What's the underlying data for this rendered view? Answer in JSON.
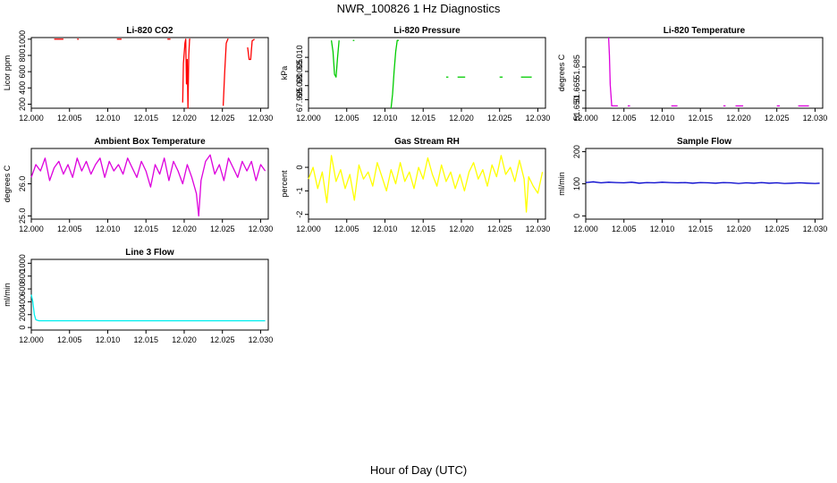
{
  "page": {
    "title": "NWR_100826  1 Hz Diagnostics",
    "xlabel": "Hour of Day (UTC)"
  },
  "chart_data": [
    {
      "type": "line",
      "title": "Li-820 CO2",
      "ylabel": "Licor ppm",
      "color": "#ff0000",
      "xlim": [
        12.0,
        12.031
      ],
      "ylim": [
        150,
        1020
      ],
      "xticks": [
        12.0,
        12.005,
        12.01,
        12.015,
        12.02,
        12.025,
        12.03
      ],
      "xtick_labels": [
        "12.000",
        "12.005",
        "12.010",
        "12.015",
        "12.020",
        "12.025",
        "12.030"
      ],
      "yticks": [
        200,
        400,
        600,
        800,
        1000
      ],
      "ytick_labels": [
        "200",
        "400",
        "600",
        "800",
        "1000"
      ],
      "series": [
        {
          "name": "seg1",
          "x": [
            12.003,
            12.0042
          ],
          "y": [
            1000,
            1000
          ]
        },
        {
          "name": "seg2",
          "x": [
            12.006,
            12.0062
          ],
          "y": [
            1000,
            1000
          ]
        },
        {
          "name": "seg3",
          "x": [
            12.0112,
            12.0118
          ],
          "y": [
            1000,
            1000
          ]
        },
        {
          "name": "seg4",
          "x": [
            12.0178,
            12.0182
          ],
          "y": [
            1000,
            1000
          ]
        },
        {
          "name": "seg5",
          "x": [
            12.0198,
            12.0199,
            12.0201,
            12.0202,
            12.0203,
            12.0204,
            12.0205,
            12.0206,
            12.0207,
            12.0208
          ],
          "y": [
            220,
            700,
            950,
            1000,
            450,
            750,
            150,
            800,
            1000,
            1000
          ]
        },
        {
          "name": "seg6",
          "x": [
            12.0251,
            12.0253,
            12.0255,
            12.0257,
            12.0258
          ],
          "y": [
            180,
            600,
            950,
            1000,
            1000
          ]
        },
        {
          "name": "seg7",
          "x": [
            12.0283,
            12.0285,
            12.0287,
            12.0289,
            12.0292
          ],
          "y": [
            900,
            750,
            750,
            980,
            1000
          ]
        }
      ]
    },
    {
      "type": "line",
      "title": "Li-820 Pressure",
      "ylabel": "kPa",
      "color": "#00cc00",
      "xlim": [
        12.0,
        12.031
      ],
      "ylim": [
        67.992,
        68.017
      ],
      "xticks": [
        12.0,
        12.005,
        12.01,
        12.015,
        12.02,
        12.025,
        12.03
      ],
      "xtick_labels": [
        "12.000",
        "12.005",
        "12.010",
        "12.015",
        "12.020",
        "12.025",
        "12.030"
      ],
      "yticks": [
        67.995,
        68.0,
        68.005,
        68.01
      ],
      "ytick_labels": [
        "67.995",
        "68.000",
        "68.005",
        "68.010"
      ],
      "series": [
        {
          "name": "seg1",
          "x": [
            12.003,
            12.0032,
            12.0034,
            12.0036,
            12.0038,
            12.004
          ],
          "y": [
            68.016,
            68.012,
            68.004,
            68.003,
            68.01,
            68.016
          ]
        },
        {
          "name": "seg2",
          "x": [
            12.0058,
            12.006
          ],
          "y": [
            68.016,
            68.016
          ]
        },
        {
          "name": "seg3",
          "x": [
            12.0108,
            12.011,
            12.0112,
            12.0114,
            12.0116,
            12.0118
          ],
          "y": [
            67.992,
            67.997,
            68.005,
            68.012,
            68.016,
            68.016
          ]
        },
        {
          "name": "seg4",
          "x": [
            12.018,
            12.0183
          ],
          "y": [
            68.003,
            68.003
          ]
        },
        {
          "name": "seg5",
          "x": [
            12.0195,
            12.0205
          ],
          "y": [
            68.003,
            68.003
          ]
        },
        {
          "name": "seg6",
          "x": [
            12.025,
            12.0254
          ],
          "y": [
            68.003,
            68.003
          ]
        },
        {
          "name": "seg7",
          "x": [
            12.0278,
            12.0292
          ],
          "y": [
            68.003,
            68.003
          ]
        }
      ]
    },
    {
      "type": "line",
      "title": "Li-820 Temperature",
      "ylabel": "degrees C",
      "color": "#dd00dd",
      "xlim": [
        12.0,
        12.031
      ],
      "ylim": [
        51.65,
        51.71
      ],
      "xticks": [
        12.0,
        12.005,
        12.01,
        12.015,
        12.02,
        12.025,
        12.03
      ],
      "xtick_labels": [
        "12.000",
        "12.005",
        "12.010",
        "12.015",
        "12.020",
        "12.025",
        "12.030"
      ],
      "yticks": [
        51.65,
        51.665,
        51.685
      ],
      "ytick_labels": [
        "51.650",
        "51.665",
        "51.685"
      ],
      "series": [
        {
          "name": "seg1",
          "x": [
            12.003,
            12.0031,
            12.0032,
            12.0034,
            12.0042
          ],
          "y": [
            51.71,
            51.695,
            51.67,
            51.652,
            51.652
          ]
        },
        {
          "name": "seg2",
          "x": [
            12.0055,
            12.0058
          ],
          "y": [
            51.652,
            51.652
          ]
        },
        {
          "name": "seg3",
          "x": [
            12.0112,
            12.012
          ],
          "y": [
            51.652,
            51.652
          ]
        },
        {
          "name": "seg4",
          "x": [
            12.018,
            12.0183
          ],
          "y": [
            51.652,
            51.652
          ]
        },
        {
          "name": "seg5",
          "x": [
            12.0196,
            12.0206
          ],
          "y": [
            51.652,
            51.652
          ]
        },
        {
          "name": "seg6",
          "x": [
            12.025,
            12.0254
          ],
          "y": [
            51.652,
            51.652
          ]
        },
        {
          "name": "seg7",
          "x": [
            12.0278,
            12.0292
          ],
          "y": [
            51.652,
            51.652
          ]
        }
      ]
    },
    {
      "type": "line",
      "title": "Ambient Box Temperature",
      "ylabel": "degrees C",
      "color": "#dd00dd",
      "xlim": [
        12.0,
        12.031
      ],
      "ylim": [
        24.9,
        27.1
      ],
      "xticks": [
        12.0,
        12.005,
        12.01,
        12.015,
        12.02,
        12.025,
        12.03
      ],
      "xtick_labels": [
        "12.000",
        "12.005",
        "12.010",
        "12.015",
        "12.020",
        "12.025",
        "12.030"
      ],
      "yticks": [
        25.0,
        26.0
      ],
      "ytick_labels": [
        "25.0",
        "26.0"
      ],
      "series": [
        {
          "name": "temp",
          "x": [
            12.0,
            12.0006,
            12.0012,
            12.0018,
            12.0024,
            12.003,
            12.0036,
            12.0042,
            12.0048,
            12.0054,
            12.006,
            12.0066,
            12.0072,
            12.0078,
            12.0084,
            12.009,
            12.0096,
            12.0102,
            12.0108,
            12.0114,
            12.012,
            12.0126,
            12.0132,
            12.0138,
            12.0144,
            12.015,
            12.0156,
            12.0162,
            12.0168,
            12.0174,
            12.018,
            12.0186,
            12.0192,
            12.0198,
            12.0204,
            12.021,
            12.0216,
            12.0219,
            12.0222,
            12.0228,
            12.0234,
            12.024,
            12.0246,
            12.0252,
            12.0258,
            12.0264,
            12.027,
            12.0276,
            12.0282,
            12.0288,
            12.0294,
            12.03,
            12.0306
          ],
          "y": [
            26.2,
            26.6,
            26.4,
            26.8,
            26.1,
            26.5,
            26.7,
            26.3,
            26.6,
            26.2,
            26.8,
            26.4,
            26.7,
            26.3,
            26.6,
            26.8,
            26.2,
            26.7,
            26.4,
            26.6,
            26.3,
            26.8,
            26.5,
            26.2,
            26.7,
            26.4,
            25.9,
            26.6,
            26.3,
            26.8,
            26.1,
            26.7,
            26.4,
            26.0,
            26.6,
            26.2,
            25.7,
            25.0,
            26.1,
            26.7,
            26.9,
            26.3,
            26.6,
            26.1,
            26.8,
            26.5,
            26.2,
            26.7,
            26.4,
            26.7,
            26.1,
            26.6,
            26.4
          ]
        }
      ]
    },
    {
      "type": "line",
      "title": "Gas Stream RH",
      "ylabel": "percent",
      "color": "#ffff00",
      "xlim": [
        12.0,
        12.031
      ],
      "ylim": [
        -2.2,
        0.8
      ],
      "xticks": [
        12.0,
        12.005,
        12.01,
        12.015,
        12.02,
        12.025,
        12.03
      ],
      "xtick_labels": [
        "12.000",
        "12.005",
        "12.010",
        "12.015",
        "12.020",
        "12.025",
        "12.030"
      ],
      "yticks": [
        -2,
        -1,
        0
      ],
      "ytick_labels": [
        "-2",
        "-1",
        "0"
      ],
      "series": [
        {
          "name": "rh",
          "x": [
            12.0,
            12.0006,
            12.0012,
            12.0018,
            12.0024,
            12.003,
            12.0036,
            12.0042,
            12.0048,
            12.0054,
            12.006,
            12.0066,
            12.0072,
            12.0078,
            12.0084,
            12.009,
            12.0096,
            12.0102,
            12.0108,
            12.0114,
            12.012,
            12.0126,
            12.0132,
            12.0138,
            12.0144,
            12.015,
            12.0156,
            12.0162,
            12.0168,
            12.0174,
            12.018,
            12.0186,
            12.0192,
            12.0198,
            12.0204,
            12.021,
            12.0216,
            12.0222,
            12.0228,
            12.0234,
            12.024,
            12.0246,
            12.0252,
            12.0258,
            12.0264,
            12.027,
            12.0276,
            12.0282,
            12.0285,
            12.0288,
            12.0294,
            12.03,
            12.0306
          ],
          "y": [
            -0.5,
            0.0,
            -0.9,
            -0.2,
            -1.5,
            0.5,
            -0.6,
            -0.1,
            -0.9,
            -0.3,
            -1.4,
            0.1,
            -0.5,
            -0.2,
            -0.8,
            0.2,
            -0.4,
            -1.0,
            -0.1,
            -0.7,
            0.2,
            -0.6,
            -0.2,
            -0.9,
            0.0,
            -0.5,
            0.4,
            -0.3,
            -0.8,
            0.1,
            -0.6,
            -0.2,
            -0.9,
            -0.3,
            -1.0,
            -0.2,
            0.2,
            -0.5,
            -0.1,
            -0.8,
            0.1,
            -0.4,
            0.5,
            -0.3,
            0.0,
            -0.6,
            0.3,
            -0.5,
            -1.9,
            -0.4,
            -0.8,
            -1.1,
            -0.2
          ]
        }
      ]
    },
    {
      "type": "line",
      "title": "Sample Flow",
      "ylabel": "ml/min",
      "color": "#0000cc",
      "xlim": [
        12.0,
        12.031
      ],
      "ylim": [
        -10,
        210
      ],
      "xticks": [
        12.0,
        12.005,
        12.01,
        12.015,
        12.02,
        12.025,
        12.03
      ],
      "xtick_labels": [
        "12.000",
        "12.005",
        "12.010",
        "12.015",
        "12.020",
        "12.025",
        "12.030"
      ],
      "yticks": [
        0,
        100,
        200
      ],
      "ytick_labels": [
        "0",
        "100",
        "200"
      ],
      "series": [
        {
          "name": "flow",
          "x": [
            12.0,
            12.001,
            12.002,
            12.003,
            12.004,
            12.005,
            12.006,
            12.007,
            12.008,
            12.009,
            12.01,
            12.011,
            12.012,
            12.013,
            12.014,
            12.015,
            12.016,
            12.017,
            12.018,
            12.019,
            12.02,
            12.021,
            12.022,
            12.023,
            12.024,
            12.025,
            12.026,
            12.027,
            12.028,
            12.029,
            12.03,
            12.0306
          ],
          "y": [
            104,
            106,
            103,
            105,
            104,
            103,
            105,
            102,
            104,
            103,
            105,
            104,
            103,
            104,
            102,
            104,
            103,
            102,
            104,
            103,
            101,
            103,
            102,
            104,
            102,
            103,
            101,
            102,
            103,
            102,
            101,
            102
          ]
        }
      ]
    },
    {
      "type": "line",
      "title": "Line 3 Flow",
      "ylabel": "ml/min",
      "color": "#00eeee",
      "xlim": [
        12.0,
        12.031
      ],
      "ylim": [
        -40,
        1060
      ],
      "xticks": [
        12.0,
        12.005,
        12.01,
        12.015,
        12.02,
        12.025,
        12.03
      ],
      "xtick_labels": [
        "12.000",
        "12.005",
        "12.010",
        "12.015",
        "12.020",
        "12.025",
        "12.030"
      ],
      "yticks": [
        0,
        200,
        400,
        600,
        800,
        1000
      ],
      "ytick_labels": [
        "0",
        "200",
        "400",
        "600",
        "800",
        "1000"
      ],
      "series": [
        {
          "name": "flow",
          "x": [
            12.0,
            12.0002,
            12.0004,
            12.0006,
            12.001,
            12.005,
            12.01,
            12.015,
            12.02,
            12.025,
            12.03,
            12.0306
          ],
          "y": [
            510,
            400,
            200,
            120,
            105,
            105,
            105,
            105,
            105,
            105,
            105,
            105
          ]
        }
      ]
    }
  ]
}
